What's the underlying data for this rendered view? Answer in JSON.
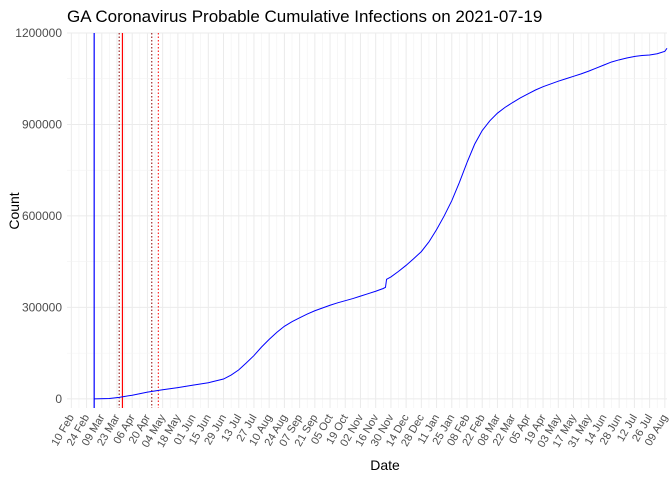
{
  "chart_data": {
    "type": "line",
    "title": "GA Coronavirus Probable Cumulative Infections on 2021-07-19",
    "xlabel": "Date",
    "ylabel": "Count",
    "x_range": [
      "2020-02-06",
      "2021-08-11"
    ],
    "ylim": [
      -30000,
      1200000
    ],
    "y_ticks": [
      0,
      300000,
      600000,
      900000,
      1200000
    ],
    "y_tick_labels": [
      "0",
      "300000",
      "600000",
      "900000",
      "1200000"
    ],
    "x_tick_dates": [
      "2020-02-10",
      "2020-02-24",
      "2020-03-09",
      "2020-03-23",
      "2020-04-06",
      "2020-04-20",
      "2020-05-04",
      "2020-05-18",
      "2020-06-01",
      "2020-06-15",
      "2020-06-29",
      "2020-07-13",
      "2020-07-27",
      "2020-08-10",
      "2020-08-24",
      "2020-09-07",
      "2020-09-21",
      "2020-10-05",
      "2020-10-19",
      "2020-11-02",
      "2020-11-16",
      "2020-11-30",
      "2020-12-14",
      "2020-12-28",
      "2021-01-11",
      "2021-01-25",
      "2021-02-08",
      "2021-02-22",
      "2021-03-08",
      "2021-03-22",
      "2021-04-05",
      "2021-04-19",
      "2021-05-03",
      "2021-05-17",
      "2021-05-31",
      "2021-06-14",
      "2021-06-28",
      "2021-07-12",
      "2021-07-26",
      "2021-08-09"
    ],
    "x_tick_labels": [
      "10 Feb",
      "24 Feb",
      "09 Mar",
      "23 Mar",
      "06 Apr",
      "20 Apr",
      "04 May",
      "18 May",
      "01 Jun",
      "15 Jun",
      "29 Jun",
      "13 Jul",
      "27 Jul",
      "10 Aug",
      "24 Aug",
      "07 Sep",
      "21 Sep",
      "05 Oct",
      "19 Oct",
      "02 Nov",
      "16 Nov",
      "30 Nov",
      "14 Dec",
      "28 Dec",
      "11 Jan",
      "25 Jan",
      "08 Feb",
      "22 Feb",
      "08 Mar",
      "22 Mar",
      "05 Apr",
      "19 Apr",
      "03 May",
      "17 May",
      "31 May",
      "14 Jun",
      "28 Jun",
      "12 Jul",
      "26 Jul",
      "09 Aug"
    ],
    "grid": true,
    "series": [
      {
        "color": "#0000ff",
        "points": [
          [
            "2020-03-02",
            0
          ],
          [
            "2020-03-16",
            1000
          ],
          [
            "2020-03-25",
            5000
          ],
          [
            "2020-04-06",
            12000
          ],
          [
            "2020-04-20",
            22000
          ],
          [
            "2020-05-04",
            30000
          ],
          [
            "2020-05-18",
            37000
          ],
          [
            "2020-06-01",
            45000
          ],
          [
            "2020-06-15",
            53000
          ],
          [
            "2020-06-29",
            65000
          ],
          [
            "2020-07-06",
            78000
          ],
          [
            "2020-07-13",
            95000
          ],
          [
            "2020-07-20",
            118000
          ],
          [
            "2020-07-27",
            142000
          ],
          [
            "2020-08-03",
            170000
          ],
          [
            "2020-08-10",
            195000
          ],
          [
            "2020-08-17",
            218000
          ],
          [
            "2020-08-24",
            238000
          ],
          [
            "2020-08-31",
            253000
          ],
          [
            "2020-09-07",
            266000
          ],
          [
            "2020-09-14",
            278000
          ],
          [
            "2020-09-21",
            289000
          ],
          [
            "2020-09-28",
            298000
          ],
          [
            "2020-10-05",
            307000
          ],
          [
            "2020-10-12",
            315000
          ],
          [
            "2020-10-19",
            322000
          ],
          [
            "2020-10-26",
            329000
          ],
          [
            "2020-11-02",
            337000
          ],
          [
            "2020-11-09",
            345000
          ],
          [
            "2020-11-16",
            353000
          ],
          [
            "2020-11-23",
            362000
          ],
          [
            "2020-11-25",
            366000
          ],
          [
            "2020-11-26",
            392000
          ],
          [
            "2020-11-30",
            400000
          ],
          [
            "2020-12-07",
            418000
          ],
          [
            "2020-12-14",
            438000
          ],
          [
            "2020-12-21",
            460000
          ],
          [
            "2020-12-28",
            483000
          ],
          [
            "2021-01-04",
            515000
          ],
          [
            "2021-01-11",
            555000
          ],
          [
            "2021-01-18",
            600000
          ],
          [
            "2021-01-25",
            650000
          ],
          [
            "2021-02-01",
            710000
          ],
          [
            "2021-02-08",
            775000
          ],
          [
            "2021-02-15",
            835000
          ],
          [
            "2021-02-22",
            880000
          ],
          [
            "2021-03-01",
            912000
          ],
          [
            "2021-03-08",
            937000
          ],
          [
            "2021-03-15",
            956000
          ],
          [
            "2021-03-22",
            972000
          ],
          [
            "2021-03-29",
            987000
          ],
          [
            "2021-04-05",
            1000000
          ],
          [
            "2021-04-12",
            1013000
          ],
          [
            "2021-04-19",
            1024000
          ],
          [
            "2021-04-26",
            1033000
          ],
          [
            "2021-05-03",
            1042000
          ],
          [
            "2021-05-10",
            1050000
          ],
          [
            "2021-05-17",
            1058000
          ],
          [
            "2021-05-24",
            1066000
          ],
          [
            "2021-05-31",
            1075000
          ],
          [
            "2021-06-07",
            1085000
          ],
          [
            "2021-06-14",
            1095000
          ],
          [
            "2021-06-21",
            1105000
          ],
          [
            "2021-06-28",
            1112000
          ],
          [
            "2021-07-05",
            1118000
          ],
          [
            "2021-07-12",
            1123000
          ],
          [
            "2021-07-19",
            1126000
          ],
          [
            "2021-07-26",
            1128000
          ],
          [
            "2021-08-02",
            1132000
          ],
          [
            "2021-08-09",
            1140000
          ],
          [
            "2021-08-11",
            1150000
          ]
        ]
      }
    ],
    "vlines": [
      {
        "x": "2020-03-02",
        "color": "#0000ff",
        "style": "solid"
      },
      {
        "x": "2020-03-25",
        "color": "#8b0000",
        "style": "dotted"
      },
      {
        "x": "2020-03-28",
        "color": "#ff0000",
        "style": "solid"
      },
      {
        "x": "2020-04-24",
        "color": "#8b0000",
        "style": "dotted"
      },
      {
        "x": "2020-04-30",
        "color": "#ff0000",
        "style": "dotted"
      }
    ]
  }
}
